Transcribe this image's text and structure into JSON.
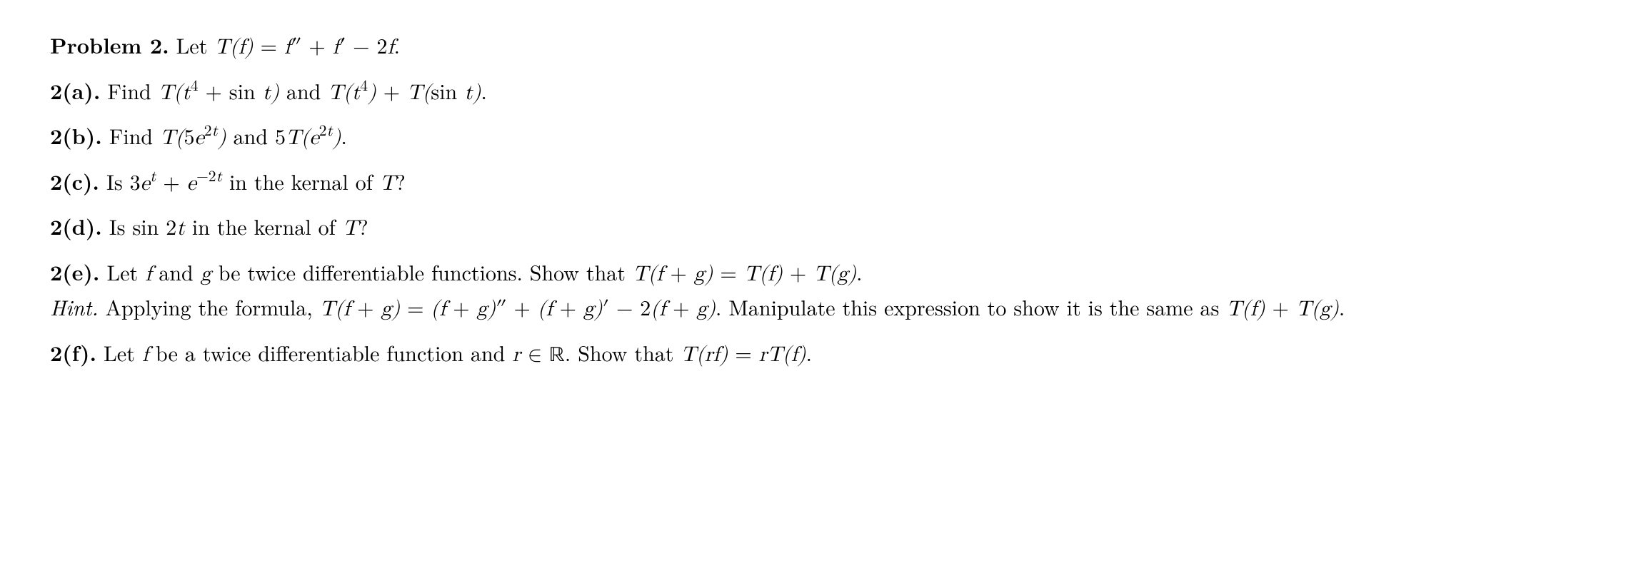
{
  "problem": {
    "label": "Problem 2.",
    "stem_before": "Let ",
    "stem_math": "T(f) = f″ + f′ − 2f",
    "stem_after": "."
  },
  "parts": {
    "a": {
      "label": "2(a).",
      "before": "Find ",
      "math1": "T(t⁴ + sin t)",
      "mid": " and ",
      "math2": "T(t⁴) + T(sin t)",
      "after": "."
    },
    "b": {
      "label": "2(b).",
      "before": "Find ",
      "math1_html": "T(5e<sup class=\"rm\">2t</sup>)",
      "mid": " and ",
      "math2_html": "5T(e<sup class=\"rm\">2t</sup>)",
      "after": "."
    },
    "c": {
      "label": "2(c).",
      "before": "Is ",
      "math_html": "3e<sup class=\"rm\">t</sup> + e<sup class=\"rm\">−2t</sup>",
      "mid": " in the kernal of ",
      "op": "T",
      "after": "?"
    },
    "d": {
      "label": "2(d).",
      "before": "Is ",
      "math": "sin 2t",
      "mid": " in the kernal of ",
      "op": "T",
      "after": "?"
    },
    "e": {
      "label": "2(e).",
      "line1_before": "Let ",
      "f": "f",
      "and": " and ",
      "g": "g",
      "line1_mid": " be twice differentiable functions. Show that ",
      "eq1": "T(f + g) = T(f) + T(g)",
      "line1_after": ".",
      "hint_label": "Hint.",
      "hint_before": " Applying the formula, ",
      "eq2": "T(f + g) = (f + g)″ + (f + g)′ − 2(f + g)",
      "hint_mid": ". Manipulate this expression to show it is the same as ",
      "eq3": "T(f) + T(g)",
      "hint_after": "."
    },
    "f": {
      "label": "2(f).",
      "before": "Let ",
      "f": "f",
      "mid1": " be a twice differentiable function and ",
      "r_in_R_html": "r ∈ <span class=\"bb\">ℝ</span>",
      "mid2": ". Show that ",
      "eq": "T(rf) = rT(f)",
      "after": "."
    }
  }
}
